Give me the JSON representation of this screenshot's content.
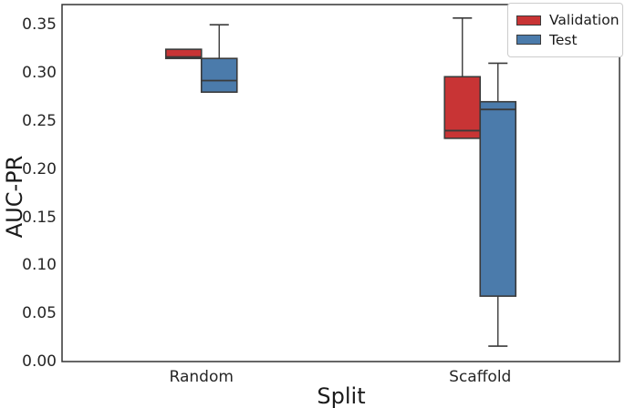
{
  "figure": {
    "background": "#ffffff",
    "spine_color": "#333333"
  },
  "chart_data": {
    "type": "boxplot",
    "title": "",
    "xlabel": "Split",
    "ylabel": "AUC-PR",
    "categories": [
      "Random",
      "Scaffold"
    ],
    "ylim": [
      0.0,
      0.371
    ],
    "yticks": [
      "0.00",
      "0.05",
      "0.10",
      "0.15",
      "0.20",
      "0.25",
      "0.30",
      "0.35"
    ],
    "grid": false,
    "legend_position": "upper right",
    "edge_color": "#3a3a3a",
    "series": [
      {
        "name": "Validation",
        "color": "#c83435",
        "boxes": [
          {
            "category": "Random",
            "whisker_low": 0.315,
            "q1": 0.315,
            "median": 0.3165,
            "q3": 0.3245,
            "whisker_high": 0.3245
          },
          {
            "category": "Scaffold",
            "whisker_low": 0.232,
            "q1": 0.232,
            "median": 0.24,
            "q3": 0.296,
            "whisker_high": 0.357
          }
        ]
      },
      {
        "name": "Test",
        "color": "#4b7bab",
        "boxes": [
          {
            "category": "Random",
            "whisker_low": 0.28,
            "q1": 0.28,
            "median": 0.292,
            "q3": 0.315,
            "whisker_high": 0.35
          },
          {
            "category": "Scaffold",
            "whisker_low": 0.016,
            "q1": 0.068,
            "median": 0.262,
            "q3": 0.27,
            "whisker_high": 0.31
          }
        ]
      }
    ]
  }
}
